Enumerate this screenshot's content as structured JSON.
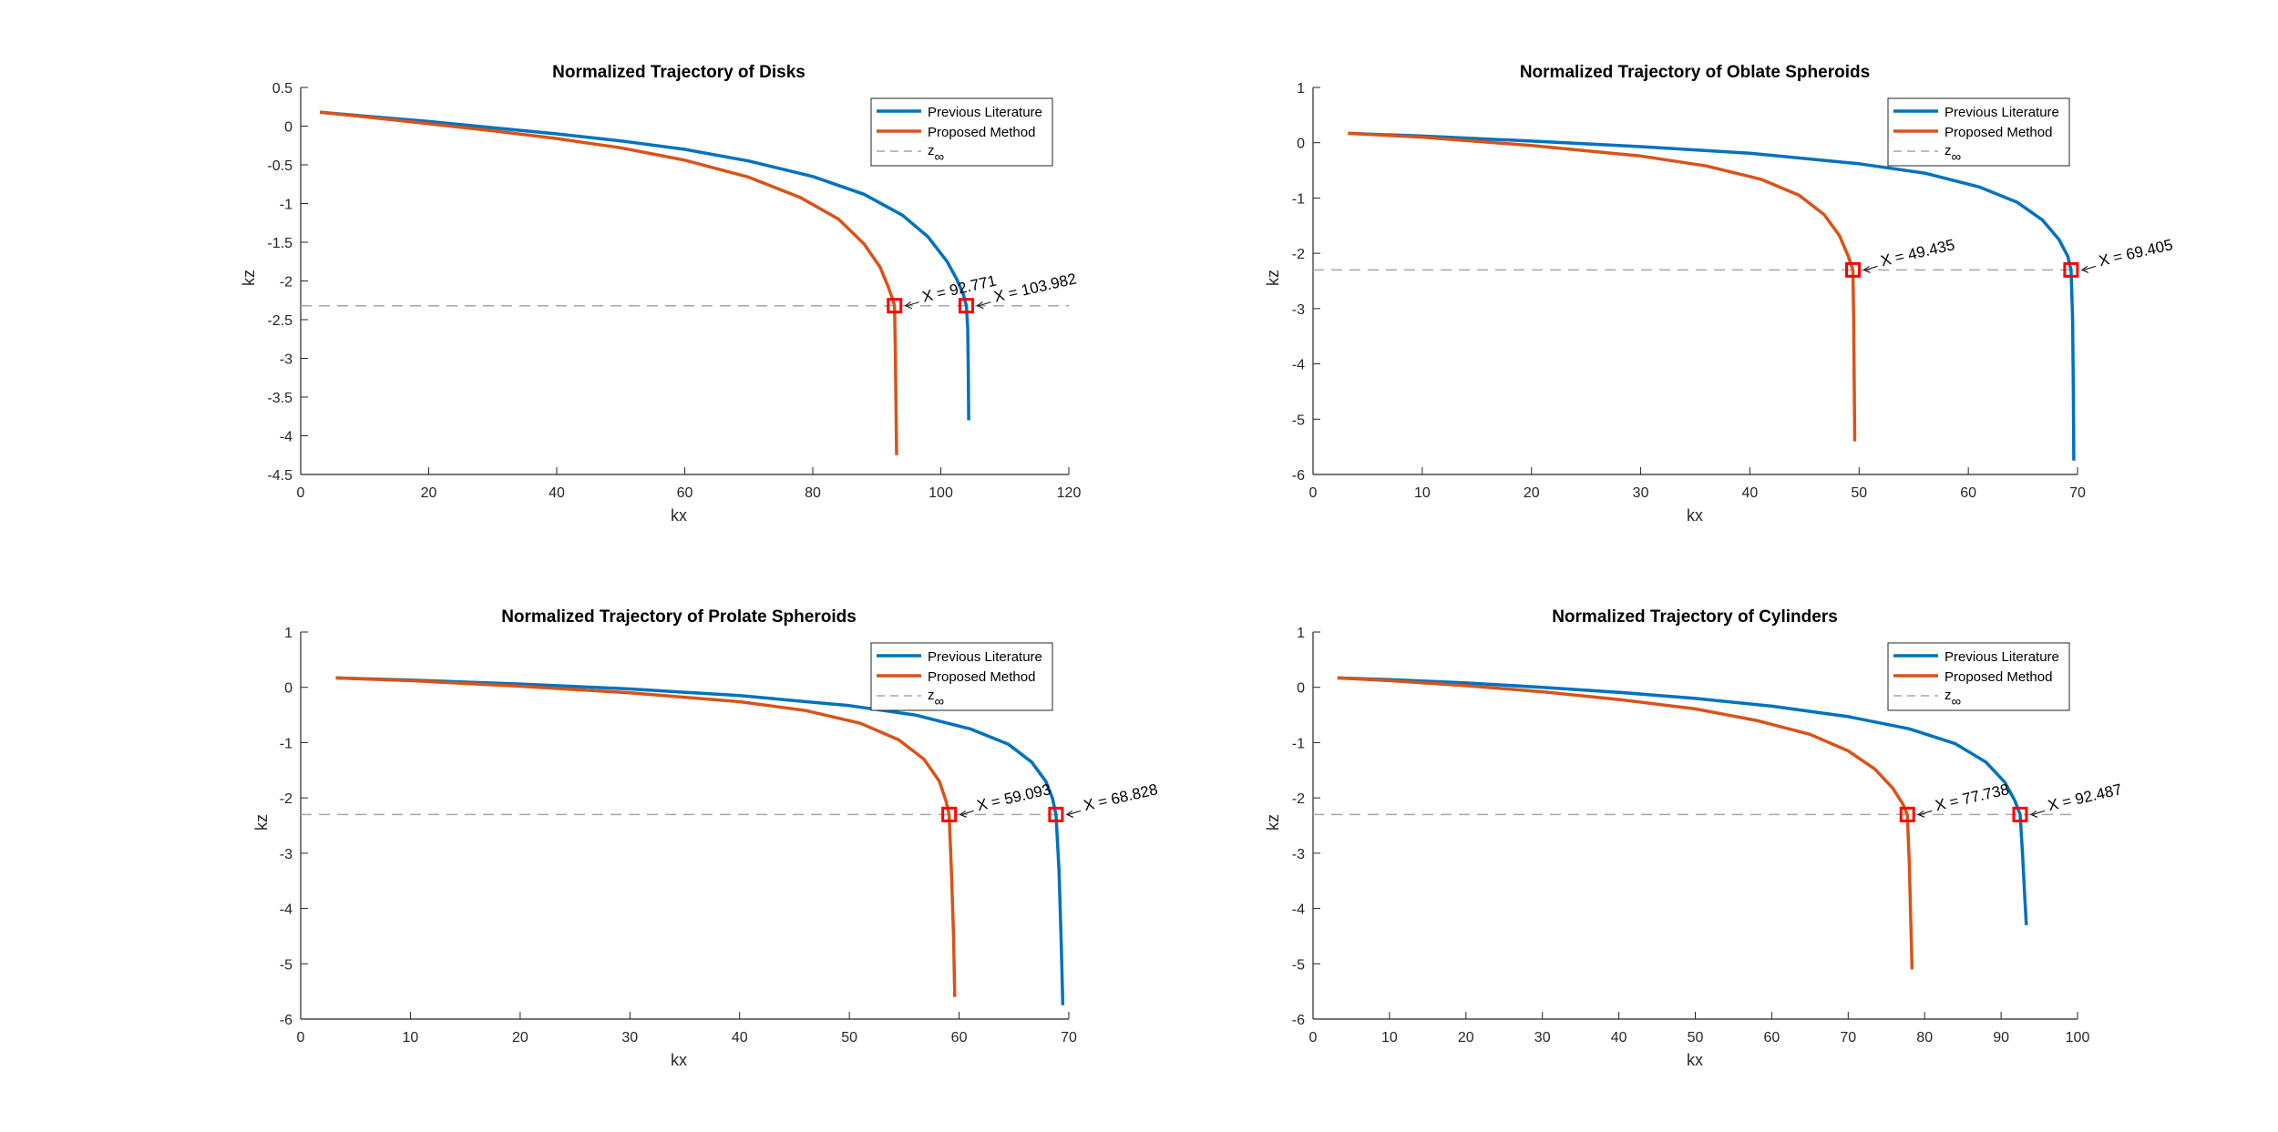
{
  "figure": {
    "background": "#ffffff"
  },
  "styles": {
    "axis_color": "#262626",
    "previous_color": "#0072BD",
    "proposed_color": "#D95319",
    "asymptote_color": "#a6a6a6",
    "marker_color": "#ff0000",
    "legend_border": "#262626"
  },
  "legend": {
    "previous": "Previous Literature",
    "proposed": "Proposed Method",
    "asymptote_base": "z",
    "asymptote_sub": "∞"
  },
  "chart_data": [
    {
      "type": "line",
      "title": "Normalized Trajectory of Disks",
      "xlabel": "kx",
      "ylabel": "kz",
      "xlim": [
        0,
        120
      ],
      "ylim": [
        -4.5,
        0.5
      ],
      "xticks": [
        0,
        20,
        40,
        60,
        80,
        100,
        120
      ],
      "yticks": [
        0.5,
        0,
        -0.5,
        -1,
        -1.5,
        -2,
        -2.5,
        -3,
        -3.5,
        -4,
        -4.5
      ],
      "ytick_labels": [
        "0.5",
        "0",
        "-0.5",
        "-1",
        "-1.5",
        "-2",
        "-2.5",
        "-3",
        "-3.5",
        "-4",
        "-4.5"
      ],
      "z_inf": -2.32,
      "asymptote_x": [
        0,
        120
      ],
      "series": [
        {
          "name": "Previous Literature",
          "x": [
            3.0,
            10,
            20,
            30,
            40,
            50,
            60,
            70,
            80,
            88,
            94,
            98,
            101,
            102.5,
            103.5,
            103.982,
            104.2,
            104.3,
            104.35
          ],
          "y": [
            0.18,
            0.13,
            0.06,
            -0.02,
            -0.1,
            -0.19,
            -0.3,
            -0.45,
            -0.65,
            -0.88,
            -1.15,
            -1.43,
            -1.75,
            -1.98,
            -2.17,
            -2.32,
            -2.6,
            -3.2,
            -3.8
          ]
        },
        {
          "name": "Proposed Method",
          "x": [
            3.0,
            10,
            20,
            30,
            40,
            50,
            60,
            70,
            78,
            84,
            88,
            90.5,
            91.8,
            92.5,
            92.771,
            92.9,
            93.0,
            93.1
          ],
          "y": [
            0.18,
            0.12,
            0.03,
            -0.06,
            -0.16,
            -0.28,
            -0.44,
            -0.66,
            -0.92,
            -1.2,
            -1.52,
            -1.82,
            -2.08,
            -2.24,
            -2.32,
            -2.9,
            -3.6,
            -4.25
          ]
        }
      ],
      "annotations": [
        {
          "series": "Proposed Method",
          "x": 92.771,
          "y": -2.32,
          "text": "X = 92.771"
        },
        {
          "series": "Previous Literature",
          "x": 103.982,
          "y": -2.32,
          "text": "X = 103.982"
        }
      ],
      "legend_position": "top-right",
      "grid": false
    },
    {
      "type": "line",
      "title": "Normalized Trajectory of Oblate Spheroids",
      "xlabel": "kx",
      "ylabel": "kz",
      "xlim": [
        0,
        70
      ],
      "ylim": [
        -6,
        1
      ],
      "xticks": [
        0,
        10,
        20,
        30,
        40,
        50,
        60,
        70
      ],
      "yticks": [
        1,
        0,
        -1,
        -2,
        -3,
        -4,
        -5,
        -6
      ],
      "ytick_labels": [
        "1",
        "0",
        "-1",
        "-2",
        "-3",
        "-4",
        "-5",
        "-6"
      ],
      "z_inf": -2.3,
      "asymptote_x": [
        0,
        70
      ],
      "series": [
        {
          "name": "Previous Literature",
          "x": [
            3.2,
            10,
            20,
            30,
            40,
            50,
            56,
            61,
            64.5,
            66.8,
            68.3,
            69.1,
            69.405,
            69.55,
            69.62,
            69.66
          ],
          "y": [
            0.17,
            0.12,
            0.03,
            -0.07,
            -0.19,
            -0.38,
            -0.55,
            -0.8,
            -1.08,
            -1.4,
            -1.75,
            -2.05,
            -2.3,
            -3.2,
            -4.5,
            -5.75
          ]
        },
        {
          "name": "Proposed Method",
          "x": [
            3.2,
            10,
            20,
            30,
            36,
            41,
            44.5,
            46.8,
            48.2,
            49.0,
            49.435,
            49.5,
            49.55,
            49.6
          ],
          "y": [
            0.17,
            0.1,
            -0.05,
            -0.24,
            -0.42,
            -0.66,
            -0.95,
            -1.3,
            -1.68,
            -2.05,
            -2.3,
            -3.2,
            -4.3,
            -5.4
          ]
        }
      ],
      "annotations": [
        {
          "series": "Proposed Method",
          "x": 49.435,
          "y": -2.3,
          "text": "X = 49.435"
        },
        {
          "series": "Previous Literature",
          "x": 69.405,
          "y": -2.3,
          "text": "X = 69.405"
        }
      ],
      "legend_position": "top-right",
      "grid": false
    },
    {
      "type": "line",
      "title": "Normalized Trajectory of Prolate Spheroids",
      "xlabel": "kx",
      "ylabel": "kz",
      "xlim": [
        0,
        70
      ],
      "ylim": [
        -6,
        1
      ],
      "xticks": [
        0,
        10,
        20,
        30,
        40,
        50,
        60,
        70
      ],
      "yticks": [
        1,
        0,
        -1,
        -2,
        -3,
        -4,
        -5,
        -6
      ],
      "ytick_labels": [
        "1",
        "0",
        "-1",
        "-2",
        "-3",
        "-4",
        "-5",
        "-6"
      ],
      "z_inf": -2.3,
      "asymptote_x": [
        0,
        70
      ],
      "series": [
        {
          "name": "Previous Literature",
          "x": [
            3.2,
            10,
            20,
            30,
            40,
            50,
            56,
            61,
            64.5,
            66.6,
            67.9,
            68.5,
            68.828,
            69.1,
            69.3,
            69.45
          ],
          "y": [
            0.17,
            0.13,
            0.06,
            -0.03,
            -0.15,
            -0.33,
            -0.5,
            -0.75,
            -1.03,
            -1.35,
            -1.7,
            -2.0,
            -2.3,
            -3.3,
            -4.6,
            -5.75
          ]
        },
        {
          "name": "Proposed Method",
          "x": [
            3.2,
            10,
            20,
            30,
            40,
            46,
            51,
            54.5,
            56.8,
            58.2,
            58.8,
            59.093,
            59.3,
            59.5,
            59.6
          ],
          "y": [
            0.17,
            0.12,
            0.02,
            -0.1,
            -0.26,
            -0.42,
            -0.65,
            -0.95,
            -1.3,
            -1.7,
            -2.05,
            -2.3,
            -3.3,
            -4.5,
            -5.6
          ]
        }
      ],
      "annotations": [
        {
          "series": "Proposed Method",
          "x": 59.093,
          "y": -2.3,
          "text": "X = 59.093"
        },
        {
          "series": "Previous Literature",
          "x": 68.828,
          "y": -2.3,
          "text": "X = 68.828"
        }
      ],
      "legend_position": "top-right",
      "grid": false
    },
    {
      "type": "line",
      "title": "Normalized Trajectory of Cylinders",
      "xlabel": "kx",
      "ylabel": "kz",
      "xlim": [
        0,
        100
      ],
      "ylim": [
        -6,
        1
      ],
      "xticks": [
        0,
        10,
        20,
        30,
        40,
        50,
        60,
        70,
        80,
        90,
        100
      ],
      "yticks": [
        1,
        0,
        -1,
        -2,
        -3,
        -4,
        -5,
        -6
      ],
      "ytick_labels": [
        "1",
        "0",
        "-1",
        "-2",
        "-3",
        "-4",
        "-5",
        "-6"
      ],
      "z_inf": -2.3,
      "asymptote_x": [
        0,
        100
      ],
      "series": [
        {
          "name": "Previous Literature",
          "x": [
            3.2,
            10,
            20,
            30,
            40,
            50,
            60,
            70,
            78,
            84,
            88,
            90.5,
            91.8,
            92.487,
            92.8,
            93.1,
            93.3
          ],
          "y": [
            0.17,
            0.14,
            0.08,
            0.0,
            -0.09,
            -0.2,
            -0.34,
            -0.53,
            -0.75,
            -1.02,
            -1.35,
            -1.72,
            -2.05,
            -2.3,
            -3.0,
            -3.8,
            -4.3
          ]
        },
        {
          "name": "Proposed Method",
          "x": [
            3.2,
            10,
            20,
            30,
            40,
            50,
            58,
            65,
            70,
            73.5,
            75.8,
            77.1,
            77.738,
            78.0,
            78.2,
            78.35
          ],
          "y": [
            0.17,
            0.12,
            0.03,
            -0.08,
            -0.22,
            -0.39,
            -0.6,
            -0.85,
            -1.15,
            -1.48,
            -1.82,
            -2.1,
            -2.3,
            -3.2,
            -4.3,
            -5.1
          ]
        }
      ],
      "annotations": [
        {
          "series": "Proposed Method",
          "x": 77.738,
          "y": -2.3,
          "text": "X = 77.738"
        },
        {
          "series": "Previous Literature",
          "x": 92.487,
          "y": -2.3,
          "text": "X = 92.487"
        }
      ],
      "legend_position": "top-right",
      "grid": false
    }
  ]
}
